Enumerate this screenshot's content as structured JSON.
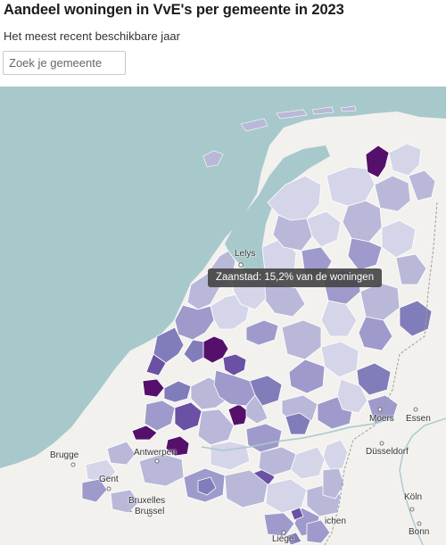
{
  "header": {
    "title": "Aandeel woningen in VvE's per gemeente in 2023",
    "subtitle": "Het meest recent beschikbare jaar"
  },
  "search": {
    "placeholder": "Zoek je gemeente",
    "value": ""
  },
  "tooltip": {
    "text": "Zaanstad: 15,2% van de woningen"
  },
  "places": {
    "lelystad": "Lelys",
    "moers": "Moers",
    "essen": "Essen",
    "brugge": "Brugge",
    "antwerpen": "Antwerpen",
    "dusseldorf": "Düsseldorf",
    "gent": "Gent",
    "bruxelles_line1": "Bruxelles",
    "bruxelles_line2": "- Brussel",
    "koln": "Köln",
    "bonn": "Bonn",
    "luik": "Liège",
    "aken": "ichen"
  },
  "colors": {
    "sea": "#a8c9cb",
    "land": "#f2f1ee",
    "choropleth_light": "#dcdcee",
    "choropleth_mid": "#9e9acb",
    "choropleth_dark": "#6a51a3",
    "choropleth_max": "#54106a",
    "tooltip_bg": "#464646"
  }
}
